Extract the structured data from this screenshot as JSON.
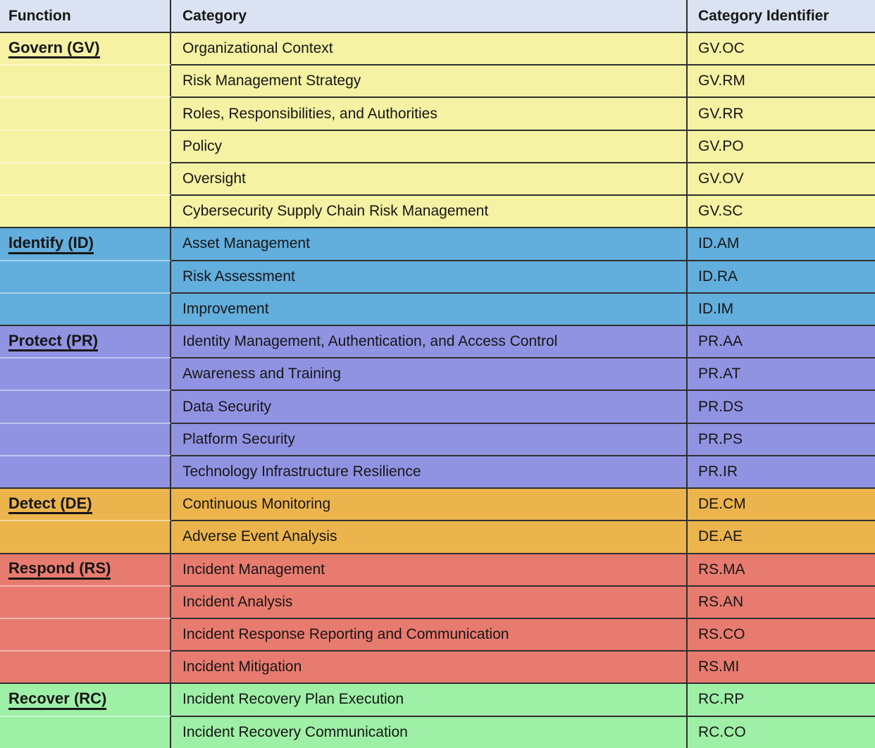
{
  "header": {
    "function": "Function",
    "category": "Category",
    "identifier": "Category Identifier"
  },
  "colors": {
    "header_bg": "#dbe2f1",
    "border_dark": "#2f2f2f",
    "text": "#161616",
    "govern": "#f5f2a3",
    "identify": "#62aedd",
    "protect": "#9093e2",
    "detect": "#ecb44c",
    "respond": "#e87b6f",
    "recover": "#9ef0a6"
  },
  "groups": [
    {
      "key": "govern",
      "function": "Govern (GV)",
      "color": "#f5f2a3",
      "rows": [
        {
          "category": "Organizational Context",
          "id": "GV.OC"
        },
        {
          "category": "Risk Management Strategy",
          "id": "GV.RM"
        },
        {
          "category": "Roles, Responsibilities, and Authorities",
          "id": "GV.RR"
        },
        {
          "category": "Policy",
          "id": "GV.PO"
        },
        {
          "category": "Oversight",
          "id": "GV.OV"
        },
        {
          "category": "Cybersecurity Supply Chain Risk Management",
          "id": "GV.SC"
        }
      ]
    },
    {
      "key": "identify",
      "function": "Identify (ID)",
      "color": "#62aedd",
      "rows": [
        {
          "category": "Asset Management",
          "id": "ID.AM"
        },
        {
          "category": "Risk Assessment",
          "id": "ID.RA"
        },
        {
          "category": "Improvement",
          "id": "ID.IM"
        }
      ]
    },
    {
      "key": "protect",
      "function": "Protect (PR)",
      "color": "#9093e2",
      "rows": [
        {
          "category": "Identity Management, Authentication, and Access Control",
          "id": "PR.AA"
        },
        {
          "category": "Awareness and Training",
          "id": "PR.AT"
        },
        {
          "category": "Data Security",
          "id": "PR.DS"
        },
        {
          "category": "Platform Security",
          "id": "PR.PS"
        },
        {
          "category": "Technology Infrastructure Resilience",
          "id": "PR.IR"
        }
      ]
    },
    {
      "key": "detect",
      "function": "Detect (DE)",
      "color": "#ecb44c",
      "rows": [
        {
          "category": "Continuous Monitoring",
          "id": "DE.CM"
        },
        {
          "category": "Adverse Event Analysis",
          "id": "DE.AE"
        }
      ]
    },
    {
      "key": "respond",
      "function": "Respond (RS)",
      "color": "#e87b6f",
      "rows": [
        {
          "category": "Incident Management",
          "id": "RS.MA"
        },
        {
          "category": "Incident Analysis",
          "id": "RS.AN"
        },
        {
          "category": "Incident Response Reporting and Communication",
          "id": "RS.CO"
        },
        {
          "category": "Incident Mitigation",
          "id": "RS.MI"
        }
      ]
    },
    {
      "key": "recover",
      "function": "Recover (RC)",
      "color": "#9ef0a6",
      "rows": [
        {
          "category": "Incident Recovery Plan Execution",
          "id": "RC.RP"
        },
        {
          "category": "Incident Recovery Communication",
          "id": "RC.CO"
        }
      ]
    }
  ]
}
